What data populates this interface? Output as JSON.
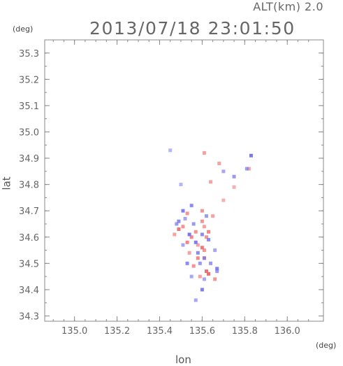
{
  "header": {
    "altitude": "ALT(km) 2.0",
    "timestamp": "2013/07/18 23:01:50"
  },
  "chart_data": {
    "type": "scatter",
    "title": "2013/07/18 23:01:50",
    "subtitle": "ALT(km) 2.0",
    "xlabel": "lon",
    "ylabel": "lat",
    "x_unit": "(deg)",
    "y_unit": "(deg)",
    "xlim": [
      134.86,
      136.17
    ],
    "ylim": [
      34.28,
      35.35
    ],
    "xticks": [
      "135.0",
      "135.2",
      "135.4",
      "135.6",
      "135.8",
      "136.0"
    ],
    "yticks": [
      "34.3",
      "34.4",
      "34.5",
      "34.6",
      "34.7",
      "34.8",
      "34.9",
      "35.0",
      "35.1",
      "35.2",
      "35.3"
    ],
    "grid": false,
    "colors": {
      "positive": "#f07070",
      "negative": "#7878f0",
      "axis": "#888888"
    },
    "series": [
      {
        "values": [
          [
            135.62,
            34.47,
            0.9
          ],
          [
            135.63,
            34.46,
            0.8
          ],
          [
            135.58,
            34.52,
            0.6
          ],
          [
            135.6,
            34.56,
            0.7
          ],
          [
            135.55,
            34.6,
            0.6
          ],
          [
            135.62,
            34.6,
            0.5
          ],
          [
            135.49,
            34.63,
            0.7
          ],
          [
            135.51,
            34.64,
            0.5
          ],
          [
            135.6,
            34.66,
            0.5
          ],
          [
            135.63,
            34.62,
            0.6
          ],
          [
            135.53,
            34.58,
            0.6
          ],
          [
            135.57,
            34.62,
            0.5
          ],
          [
            135.61,
            34.52,
            0.6
          ],
          [
            135.56,
            34.49,
            0.5
          ],
          [
            135.59,
            34.45,
            0.4
          ],
          [
            135.68,
            34.88,
            0.4
          ],
          [
            135.64,
            34.81,
            0.4
          ],
          [
            135.7,
            34.74,
            0.3
          ],
          [
            135.75,
            34.79,
            0.3
          ],
          [
            135.6,
            34.7,
            0.5
          ],
          [
            135.53,
            34.69,
            0.5
          ],
          [
            135.61,
            34.55,
            0.5
          ],
          [
            135.58,
            34.57,
            0.4
          ],
          [
            135.54,
            34.54,
            0.4
          ],
          [
            135.61,
            34.64,
            0.4
          ],
          [
            135.47,
            34.61,
            0.4
          ],
          [
            135.66,
            34.44,
            0.5
          ],
          [
            135.82,
            34.86,
            0.4
          ],
          [
            135.61,
            34.92,
            0.4
          ],
          [
            135.65,
            34.68,
            0.4
          ]
        ]
      },
      {
        "values": [
          [
            135.51,
            34.7,
            -0.7
          ],
          [
            135.6,
            34.61,
            -0.6
          ],
          [
            135.54,
            34.61,
            -0.8
          ],
          [
            135.57,
            34.58,
            -0.7
          ],
          [
            135.63,
            34.59,
            -0.6
          ],
          [
            135.58,
            34.54,
            -0.6
          ],
          [
            135.53,
            34.5,
            -0.6
          ],
          [
            135.67,
            34.48,
            -0.7
          ],
          [
            135.6,
            34.4,
            -0.7
          ],
          [
            135.83,
            34.91,
            -0.8
          ],
          [
            135.81,
            34.86,
            -0.5
          ],
          [
            135.75,
            34.83,
            -0.5
          ],
          [
            135.49,
            34.66,
            -0.6
          ],
          [
            135.56,
            34.65,
            -0.5
          ],
          [
            135.52,
            34.67,
            -0.4
          ],
          [
            135.59,
            34.5,
            -0.5
          ],
          [
            135.55,
            34.45,
            -0.4
          ],
          [
            135.64,
            34.5,
            -0.5
          ],
          [
            135.66,
            34.55,
            -0.4
          ],
          [
            135.7,
            34.85,
            -0.4
          ],
          [
            135.57,
            34.36,
            -0.4
          ],
          [
            135.62,
            34.68,
            -0.5
          ],
          [
            135.51,
            34.57,
            -0.4
          ],
          [
            135.67,
            34.47,
            -0.5
          ],
          [
            135.45,
            34.93,
            -0.3
          ],
          [
            135.61,
            34.52,
            -0.5
          ],
          [
            135.55,
            34.72,
            -0.6
          ],
          [
            135.48,
            34.65,
            -0.5
          ],
          [
            135.5,
            34.8,
            -0.3
          ],
          [
            135.61,
            34.44,
            -0.4
          ]
        ]
      }
    ]
  }
}
